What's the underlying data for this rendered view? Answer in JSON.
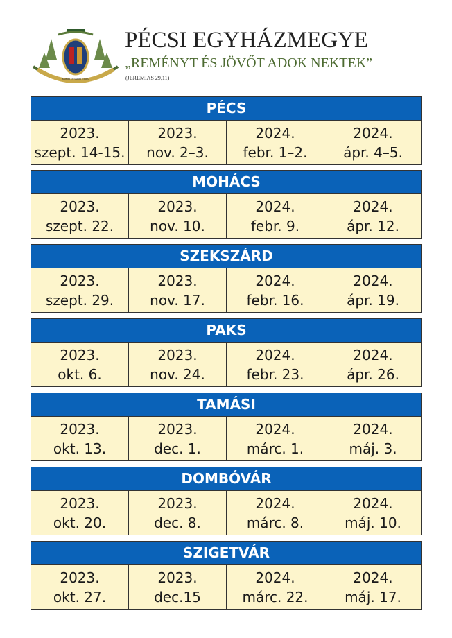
{
  "header": {
    "title": "PÉCSI EGYHÁZMEGYE",
    "motto": "„REMÉNYT ÉS JÖVŐT ADOK NEKTEK”",
    "reference": "(JEREMIAS 29,11)",
    "logo_text": "ANNO DOMINI 1009"
  },
  "colors": {
    "header_blue": "#0a62b8",
    "cell_cream": "#fdf5cc",
    "motto_green": "#4d6b32"
  },
  "locations": [
    {
      "name": "PÉCS",
      "dates": [
        [
          "2023.",
          "szept. 14-15."
        ],
        [
          "2023.",
          "nov. 2–3."
        ],
        [
          "2024.",
          "febr. 1–2."
        ],
        [
          "2024.",
          "ápr. 4–5."
        ]
      ]
    },
    {
      "name": "MOHÁCS",
      "dates": [
        [
          "2023.",
          "szept. 22."
        ],
        [
          "2023.",
          "nov. 10."
        ],
        [
          "2024.",
          "febr. 9."
        ],
        [
          "2024.",
          "ápr. 12."
        ]
      ]
    },
    {
      "name": "SZEKSZÁRD",
      "dates": [
        [
          "2023.",
          "szept. 29."
        ],
        [
          "2023.",
          "nov. 17."
        ],
        [
          "2024.",
          "febr. 16."
        ],
        [
          "2024.",
          "ápr. 19."
        ]
      ]
    },
    {
      "name": "PAKS",
      "dates": [
        [
          "2023.",
          "okt. 6."
        ],
        [
          "2023.",
          "nov. 24."
        ],
        [
          "2024.",
          "febr. 23."
        ],
        [
          "2024.",
          "ápr. 26."
        ]
      ]
    },
    {
      "name": "TAMÁSI",
      "dates": [
        [
          "2023.",
          "okt. 13."
        ],
        [
          "2023.",
          "dec. 1."
        ],
        [
          "2024.",
          "márc. 1."
        ],
        [
          "2024.",
          "máj. 3."
        ]
      ]
    },
    {
      "name": "DOMBÓVÁR",
      "dates": [
        [
          "2023.",
          "okt. 20."
        ],
        [
          "2023.",
          "dec. 8."
        ],
        [
          "2024.",
          "márc. 8."
        ],
        [
          "2024.",
          "máj. 10."
        ]
      ]
    },
    {
      "name": "SZIGETVÁR",
      "dates": [
        [
          "2023.",
          "okt. 27."
        ],
        [
          "2023.",
          "dec.15"
        ],
        [
          "2024.",
          "márc. 22."
        ],
        [
          "2024.",
          "máj. 17."
        ]
      ]
    }
  ]
}
